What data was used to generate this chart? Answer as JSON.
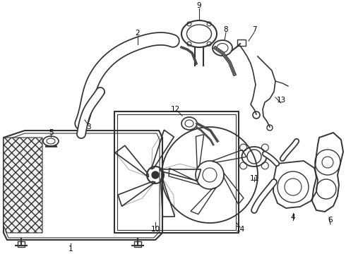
{
  "background_color": "#ffffff",
  "line_color": "#333333",
  "label_color": "#000000",
  "fig_width": 4.9,
  "fig_height": 3.6,
  "dpi": 100
}
